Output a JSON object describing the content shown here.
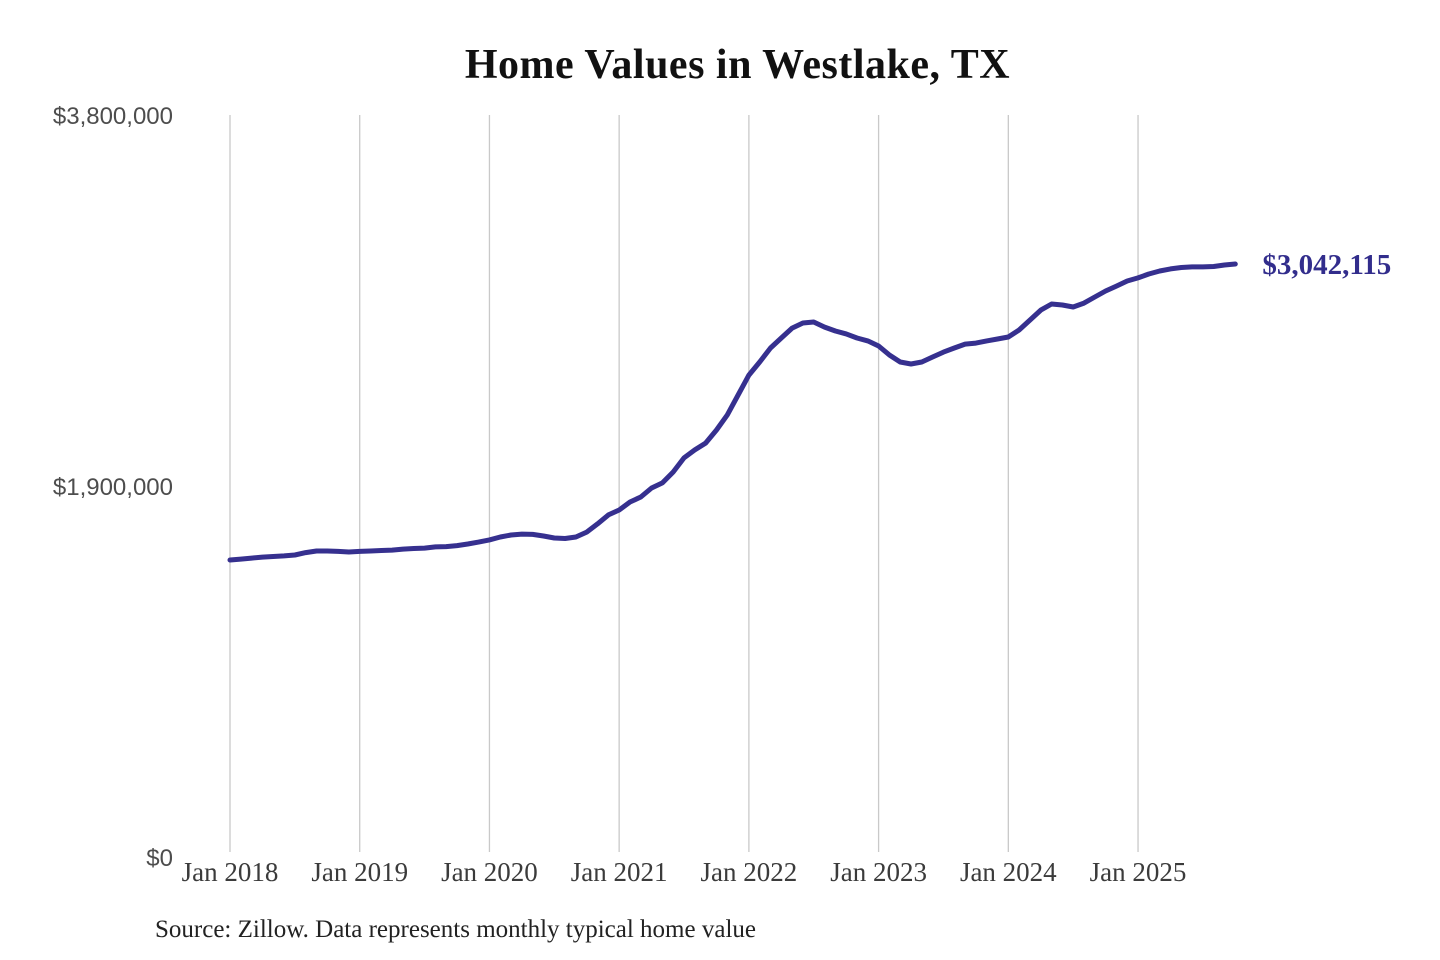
{
  "header": {
    "title": "Home Values in Westlake, TX"
  },
  "footer": {
    "source": "Source: Zillow. Data represents monthly typical home value"
  },
  "colors": {
    "background": "#ffffff",
    "line": "#36308F",
    "end_label": "#322D8C",
    "gridline": "#c9c9c9",
    "y_tick_text": "#4d4d4d",
    "x_tick_text": "#3b3b3b",
    "title_text": "#111111",
    "source_text": "#222222"
  },
  "chart_data": {
    "type": "line",
    "title": "Home Values in Westlake, TX",
    "xlabel": "",
    "ylabel": "",
    "x_start": "2018-01",
    "x_interval": "month",
    "x_end": "2025-10",
    "x_tick_labels": [
      "Jan 2018",
      "Jan 2019",
      "Jan 2020",
      "Jan 2021",
      "Jan 2022",
      "Jan 2023",
      "Jan 2024",
      "Jan 2025"
    ],
    "y_ticks": [
      0,
      1900000,
      3800000
    ],
    "y_tick_labels": [
      "$0",
      "$1,900,000",
      "$3,800,000"
    ],
    "ylim": [
      0,
      3800000
    ],
    "grid": "vertical-only",
    "legend": "none",
    "end_label": "$3,042,115",
    "end_value": 3042115,
    "series": [
      {
        "name": "Monthly typical home value",
        "values": [
          1526000,
          1531000,
          1536000,
          1541000,
          1544000,
          1547000,
          1552000,
          1564000,
          1572000,
          1572000,
          1570000,
          1567000,
          1570000,
          1572000,
          1575000,
          1577000,
          1582000,
          1585000,
          1587000,
          1593000,
          1595000,
          1600000,
          1608000,
          1618000,
          1629000,
          1644000,
          1654000,
          1659000,
          1657000,
          1649000,
          1639000,
          1636000,
          1644000,
          1669000,
          1711000,
          1757000,
          1782000,
          1823000,
          1849000,
          1895000,
          1921000,
          1977000,
          2049000,
          2090000,
          2125000,
          2192000,
          2269000,
          2371000,
          2473000,
          2540000,
          2612000,
          2663000,
          2714000,
          2740000,
          2745000,
          2719000,
          2699000,
          2684000,
          2663000,
          2648000,
          2622000,
          2576000,
          2540000,
          2530000,
          2540000,
          2566000,
          2591000,
          2612000,
          2632000,
          2637000,
          2648000,
          2658000,
          2668000,
          2704000,
          2755000,
          2806000,
          2837000,
          2832000,
          2822000,
          2842000,
          2873000,
          2904000,
          2929000,
          2955000,
          2971000,
          2991000,
          3006000,
          3017000,
          3024000,
          3027000,
          3027000,
          3029000,
          3037000,
          3042115
        ]
      }
    ]
  }
}
